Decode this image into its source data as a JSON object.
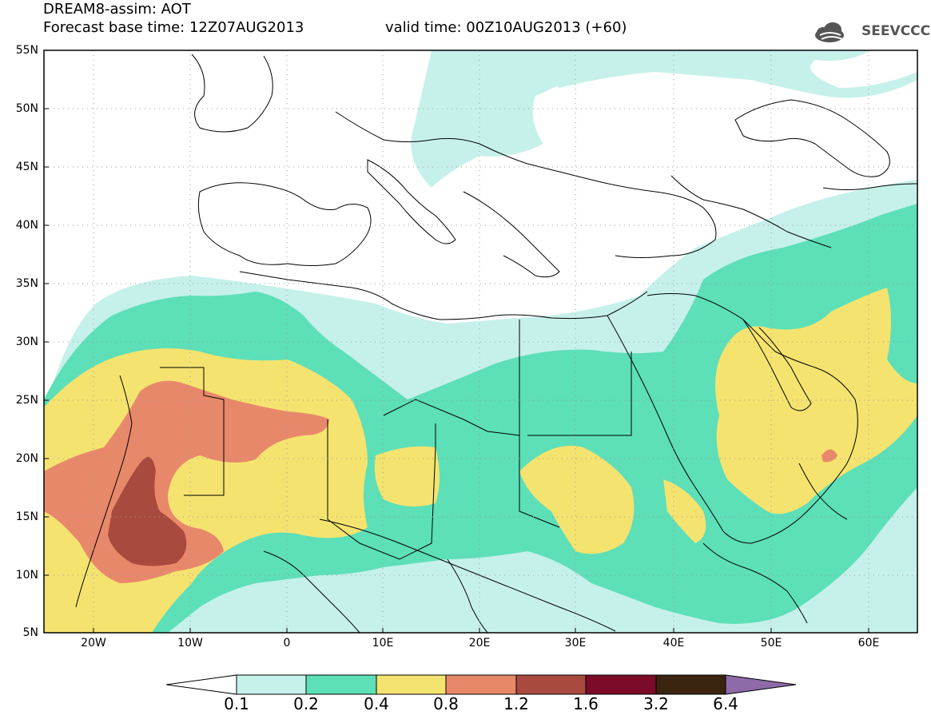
{
  "header": {
    "title": "DREAM8-assim: AOT",
    "base_time": "Forecast base time: 12Z07AUG2013",
    "valid_time": "valid time: 00Z10AUG2013 (+60)",
    "logo_text": "SEEVCCC"
  },
  "map": {
    "lat_ticks": [
      "55N",
      "50N",
      "45N",
      "40N",
      "35N",
      "30N",
      "25N",
      "20N",
      "15N",
      "10N",
      "5N"
    ],
    "lon_ticks": [
      "20W",
      "10W",
      "0",
      "10E",
      "20E",
      "30E",
      "40E",
      "50E",
      "60E"
    ],
    "lon_range": [
      -25,
      65
    ],
    "lat_range": [
      5,
      55
    ]
  },
  "colorbar": {
    "levels": [
      "0.1",
      "0.2",
      "0.4",
      "0.8",
      "1.2",
      "1.6",
      "3.2",
      "6.4"
    ],
    "colors": [
      "#c6f1ea",
      "#5ddfb8",
      "#f5e370",
      "#e8886a",
      "#a94a3e",
      "#7c0b2a",
      "#3a2410",
      "#8e6aa8"
    ]
  }
}
